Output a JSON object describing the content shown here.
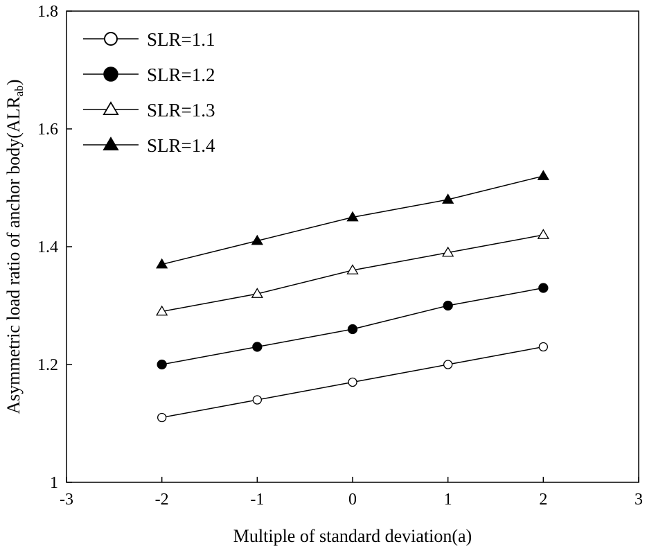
{
  "chart_data": {
    "type": "line",
    "title": "",
    "xlabel": "Multiple of standard deviation(a)",
    "ylabel": "Asymmetric load ratio of anchor body(ALR",
    "ylabel_subscript": "ab",
    "ylabel_suffix": ")",
    "xlim": [
      -3,
      3
    ],
    "ylim": [
      1,
      1.8
    ],
    "xticks": [
      "-3",
      "-2",
      "-1",
      "0",
      "1",
      "2",
      "3"
    ],
    "yticks": [
      "1",
      "1.2",
      "1.4",
      "1.6",
      "1.8"
    ],
    "grid": false,
    "legend": "top-left",
    "x": [
      -2,
      -1,
      0,
      1,
      2
    ],
    "series": [
      {
        "name": "SLR=1.1",
        "marker": "circle-open",
        "values": [
          1.11,
          1.14,
          1.17,
          1.2,
          1.23
        ]
      },
      {
        "name": "SLR=1.2",
        "marker": "circle-filled",
        "values": [
          1.2,
          1.23,
          1.26,
          1.3,
          1.33
        ]
      },
      {
        "name": "SLR=1.3",
        "marker": "triangle-open",
        "values": [
          1.29,
          1.32,
          1.36,
          1.39,
          1.42
        ]
      },
      {
        "name": "SLR=1.4",
        "marker": "triangle-filled",
        "values": [
          1.37,
          1.41,
          1.45,
          1.48,
          1.52
        ]
      }
    ],
    "colors": {
      "line": "#000000",
      "background": "#ffffff"
    }
  }
}
